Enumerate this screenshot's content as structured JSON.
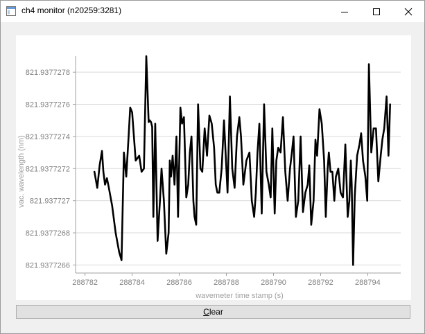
{
  "window": {
    "title": "ch4 monitor (n20259:3281)"
  },
  "controls": {
    "clear_label_first": "C",
    "clear_label_rest": "lear"
  },
  "chart_data": {
    "type": "line",
    "title": "",
    "xlabel": "wavemeter time stamp (s)",
    "ylabel": "vac. wavelength (nm)",
    "xlim": [
      288781.6,
      288795.4
    ],
    "ylim": [
      821.93772655,
      821.9377279
    ],
    "x_ticks": [
      288782,
      288784,
      288786,
      288788,
      288790,
      288792,
      288794
    ],
    "x_tick_labels": [
      "288782",
      "288784",
      "288786",
      "288788",
      "288790",
      "288792",
      "288794"
    ],
    "y_ticks": [
      821.9377266,
      821.9377268,
      821.937727,
      821.9377272,
      821.9377274,
      821.9377276,
      821.9377278
    ],
    "y_tick_labels": [
      "821.9377266",
      "821.9377268",
      "821.937727",
      "821.9377272",
      "821.9377274",
      "821.9377276",
      "821.9377278"
    ],
    "grid": "horizontal",
    "series": [
      {
        "name": "ch4",
        "color": "#000000",
        "x": [
          288782.4,
          288782.52,
          288782.62,
          288782.72,
          288782.78,
          288782.85,
          288782.93,
          288783.0,
          288783.15,
          288783.3,
          288783.45,
          288783.55,
          288783.65,
          288783.75,
          288783.85,
          288783.92,
          288784.0,
          288784.15,
          288784.3,
          288784.4,
          288784.5,
          288784.6,
          288784.7,
          288784.75,
          288784.8,
          288784.85,
          288784.9,
          288784.98,
          288785.08,
          288785.18,
          288785.25,
          288785.3,
          288785.35,
          288785.45,
          288785.55,
          288785.6,
          288785.65,
          288785.72,
          288785.8,
          288785.88,
          288785.95,
          288786.05,
          288786.12,
          288786.2,
          288786.3,
          288786.38,
          288786.45,
          288786.52,
          288786.6,
          288786.65,
          288786.72,
          288786.8,
          288786.9,
          288786.98,
          288787.08,
          288787.18,
          288787.28,
          288787.38,
          288787.48,
          288787.55,
          288787.62,
          288787.7,
          288787.8,
          288787.9,
          288788.05,
          288788.15,
          288788.25,
          288788.35,
          288788.45,
          288788.55,
          288788.62,
          288788.72,
          288788.85,
          288788.98,
          288789.08,
          288789.18,
          288789.25,
          288789.32,
          288789.4,
          288789.5,
          288789.6,
          288789.7,
          288789.8,
          288789.88,
          288789.95,
          288790.05,
          288790.12,
          288790.2,
          288790.3,
          288790.4,
          288790.5,
          288790.6,
          288790.7,
          288790.78,
          288790.85,
          288790.95,
          288791.05,
          288791.15,
          288791.25,
          288791.35,
          288791.45,
          288791.52,
          288791.6,
          288791.7,
          288791.78,
          288791.85,
          288791.95,
          288792.05,
          288792.15,
          288792.22,
          288792.3,
          288792.35,
          288792.42,
          288792.5,
          288792.58,
          288792.65,
          288792.75,
          288792.85,
          288792.95,
          288793.05,
          288793.15,
          288793.22,
          288793.28,
          288793.32,
          288793.38,
          288793.45,
          288793.55,
          288793.65,
          288793.72,
          288793.8,
          288793.9,
          288793.98,
          288794.05,
          288794.15,
          288794.25,
          288794.35,
          288794.45,
          288794.55,
          288794.62,
          288794.7,
          288794.8,
          288794.88,
          288794.95
        ],
        "y": [
          821.93772718,
          821.93772708,
          821.93772722,
          821.93772731,
          821.93772718,
          821.9377271,
          821.93772714,
          821.93772709,
          821.93772697,
          821.9377268,
          821.93772668,
          821.93772663,
          821.9377273,
          821.93772715,
          821.9377274,
          821.93772758,
          821.93772755,
          821.93772725,
          821.93772728,
          821.93772718,
          821.9377272,
          821.9377279,
          821.93772749,
          821.9377275,
          821.93772749,
          821.93772746,
          821.9377269,
          821.93772748,
          821.93772675,
          821.937727,
          821.9377272,
          821.9377271,
          821.937727,
          821.93772667,
          821.9377268,
          821.93772725,
          821.93772715,
          821.93772728,
          821.9377271,
          821.9377274,
          821.9377269,
          821.93772758,
          821.93772748,
          821.93772752,
          821.93772702,
          821.9377271,
          821.9377273,
          821.9377274,
          821.937727,
          821.9377269,
          821.93772685,
          821.9377276,
          821.9377272,
          821.93772718,
          821.93772745,
          821.93772728,
          821.93772753,
          821.93772748,
          821.93772733,
          821.9377271,
          821.93772705,
          821.93772705,
          821.9377272,
          821.9377275,
          821.93772705,
          821.93772765,
          821.9377272,
          821.93772708,
          821.9377274,
          821.93772752,
          821.9377274,
          821.9377271,
          821.93772725,
          821.9377273,
          821.937727,
          821.9377269,
          821.93772705,
          821.9377273,
          821.93772748,
          821.93772692,
          821.9377276,
          821.93772718,
          821.9377271,
          821.93772702,
          821.93772745,
          821.93772692,
          821.93772725,
          821.93772733,
          821.9377273,
          821.93772752,
          821.93772718,
          821.937727,
          821.9377272,
          821.9377273,
          821.9377274,
          821.9377269,
          821.937727,
          821.9377274,
          821.93772693,
          821.93772705,
          821.9377271,
          821.93772722,
          821.93772685,
          821.937727,
          821.93772738,
          821.93772728,
          821.93772757,
          821.93772748,
          821.93772725,
          821.9377269,
          821.9377272,
          821.9377273,
          821.93772718,
          821.93772718,
          821.937727,
          821.93772715,
          821.9377272,
          821.93772705,
          821.93772702,
          821.93772735,
          821.9377269,
          821.937727,
          821.93772725,
          821.9377271,
          821.9377266,
          821.93772703,
          821.93772728,
          821.93772735,
          821.93772742,
          821.93772725,
          821.93772715,
          821.937727,
          821.93772785,
          821.9377273,
          821.93772745,
          821.93772745,
          821.93772712,
          821.93772728,
          821.93772738,
          821.93772745,
          821.93772765,
          821.93772728,
          821.9377276
        ]
      }
    ]
  }
}
